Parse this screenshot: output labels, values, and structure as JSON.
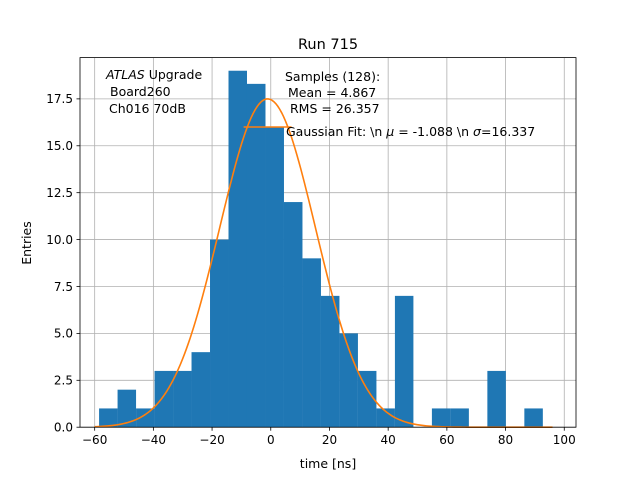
{
  "chart_data": {
    "type": "bar",
    "title": "Run 715",
    "xlabel": "time [ns]",
    "ylabel": "Entries",
    "xlim": [
      -65,
      104
    ],
    "ylim": [
      0,
      19.7
    ],
    "grid": true,
    "xticks": [
      -60,
      -40,
      -20,
      0,
      20,
      40,
      60,
      80,
      100
    ],
    "yticks": [
      0.0,
      2.5,
      5.0,
      7.5,
      10.0,
      12.5,
      15.0,
      17.5
    ],
    "bar_color": "#1f77b4",
    "fit_color": "#ff7f0e",
    "bins": {
      "edges": [
        -58.5,
        -52.2,
        -45.9,
        -39.6,
        -33.3,
        -27.0,
        -20.7,
        -14.4,
        -8.1,
        -1.8,
        4.5,
        10.8,
        17.1,
        23.4,
        29.7,
        36.0,
        42.3,
        48.6,
        54.9,
        61.2,
        67.5,
        73.8,
        80.1,
        86.4,
        92.7,
        99.0
      ],
      "values": [
        1,
        2,
        1,
        3,
        3,
        4,
        10,
        19,
        18.3,
        16,
        12,
        9,
        7,
        5,
        3,
        1,
        7,
        0,
        1,
        1,
        0,
        3,
        0,
        1,
        0
      ]
    },
    "fit": {
      "amplitude": 17.5,
      "mu": -1.088,
      "sigma": 16.337,
      "x_range": [
        -60,
        96
      ]
    },
    "fit_marker_y": 16,
    "annotations": {
      "atlas_italic": "ATLAS",
      "atlas_rest": " Upgrade",
      "board": "Board260",
      "channel": "Ch016 70dB",
      "samples": "Samples (128):",
      "mean": "Mean = 4.867",
      "rms": "RMS = 26.357",
      "gauss_prefix": "Gaussian Fit: \\n ",
      "gauss_mu_sym": "μ",
      "gauss_mid": " = -1.088 \\n ",
      "gauss_sigma_sym": "σ",
      "gauss_suffix": "=16.337"
    }
  }
}
